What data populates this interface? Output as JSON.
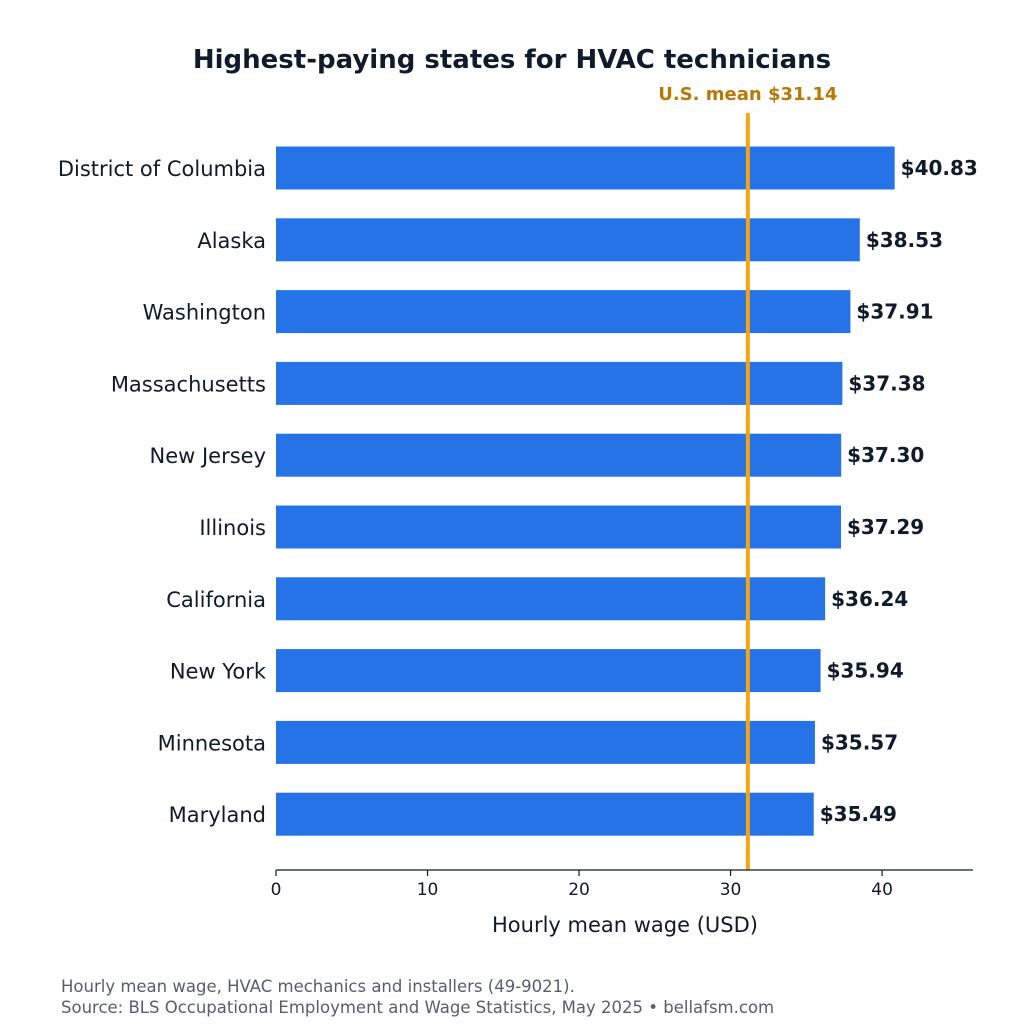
{
  "chart_data": {
    "type": "bar",
    "orientation": "horizontal",
    "title": "Highest-paying states for HVAC technicians",
    "xlabel": "Hourly mean wage (USD)",
    "ylabel": "",
    "categories": [
      "District of Columbia",
      "Alaska",
      "Washington",
      "Massachusetts",
      "New Jersey",
      "Illinois",
      "California",
      "New York",
      "Minnesota",
      "Maryland"
    ],
    "values": [
      40.83,
      38.53,
      37.91,
      37.38,
      37.3,
      37.29,
      36.24,
      35.94,
      35.57,
      35.49
    ],
    "value_labels": [
      "$40.83",
      "$38.53",
      "$37.91",
      "$37.38",
      "$37.30",
      "$37.29",
      "$36.24",
      "$35.94",
      "$35.57",
      "$35.49"
    ],
    "xlim": [
      0,
      46
    ],
    "xticks": [
      0,
      10,
      20,
      30,
      40
    ],
    "xtick_labels": [
      "0",
      "10",
      "20",
      "30",
      "40"
    ],
    "reference_line": {
      "value": 31.14,
      "label": "U.S. mean $31.14",
      "color": "#f5a511",
      "label_color": "#b87806"
    },
    "bar_color": "#2673e8",
    "grid": false,
    "legend": "none"
  },
  "footnote": {
    "line1": "Hourly mean wage, HVAC mechanics and installers (49-9021).",
    "line2": "Source: BLS Occupational Employment and Wage Statistics, May 2025 • bellafsm.com"
  }
}
